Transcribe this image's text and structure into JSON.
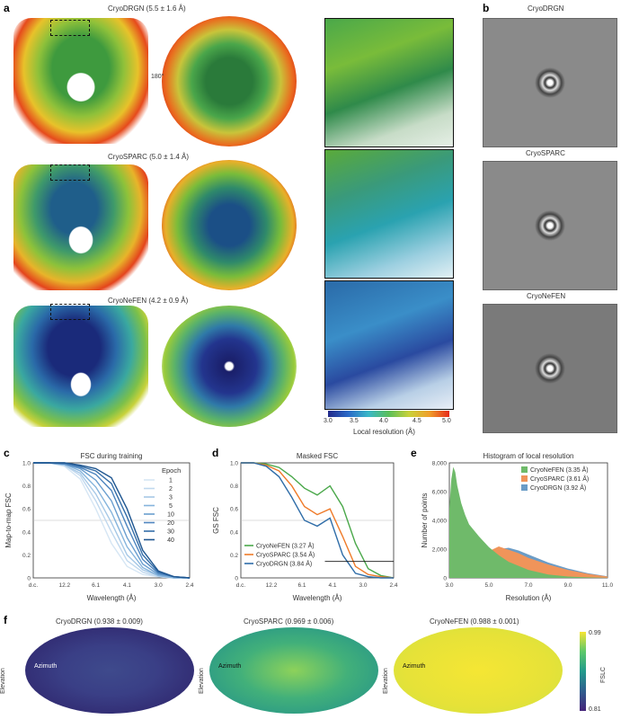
{
  "panel_labels": {
    "a": "a",
    "b": "b",
    "c": "c",
    "d": "d",
    "e": "e",
    "f": "f"
  },
  "panel_a": {
    "maps": [
      {
        "title": "CryoDRGN (5.5 ± 1.6 Å)"
      },
      {
        "title": "CryoSPARC (5.0 ± 1.4 Å)"
      },
      {
        "title": "CryoNeFEN (4.2 ± 0.9 Å)"
      }
    ],
    "rotation_label": "180°",
    "colorbar": {
      "ticks": [
        "3.0",
        "3.5",
        "4.0",
        "4.5",
        "5.0"
      ],
      "label": "Local resolution (Å)"
    }
  },
  "panel_b": {
    "titles": [
      "CryoDRGN",
      "CryoSPARC",
      "CryoNeFEN"
    ]
  },
  "colors": {
    "nefen": "#4aa84a",
    "sparc": "#ef7b2a",
    "drgn": "#2f6da8"
  },
  "chart_data": [
    {
      "id": "c",
      "type": "line",
      "title": "FSC during training",
      "xlabel": "Wavelength (Å)",
      "ylabel": "Map-to-map FSC",
      "xticks": [
        "d.c.",
        "12.2",
        "6.1",
        "4.1",
        "3.0",
        "2.4"
      ],
      "yticks": [
        "0",
        "0.2",
        "0.4",
        "0.6",
        "0.8",
        "1.0"
      ],
      "ylim": [
        0,
        1
      ],
      "legend_title": "Epoch",
      "series": [
        {
          "name": "1",
          "color": "#d6e6f4",
          "values": [
            1,
            1,
            0.97,
            0.86,
            0.6,
            0.3,
            0.1,
            0.03,
            0.01,
            0,
            0
          ]
        },
        {
          "name": "2",
          "color": "#c0d8ee",
          "values": [
            1,
            1,
            0.98,
            0.89,
            0.67,
            0.4,
            0.15,
            0.05,
            0.01,
            0,
            0
          ]
        },
        {
          "name": "3",
          "color": "#a6c8e6",
          "values": [
            1,
            1,
            0.98,
            0.91,
            0.73,
            0.48,
            0.2,
            0.07,
            0.02,
            0,
            0
          ]
        },
        {
          "name": "5",
          "color": "#86b4dc",
          "values": [
            1,
            1,
            0.99,
            0.93,
            0.79,
            0.57,
            0.27,
            0.09,
            0.02,
            0,
            0
          ]
        },
        {
          "name": "10",
          "color": "#6a9ecf",
          "values": [
            1,
            1,
            0.99,
            0.95,
            0.85,
            0.67,
            0.35,
            0.12,
            0.03,
            0.01,
            0
          ]
        },
        {
          "name": "20",
          "color": "#4f86bf",
          "values": [
            1,
            1,
            0.99,
            0.96,
            0.9,
            0.76,
            0.45,
            0.16,
            0.04,
            0.01,
            0
          ]
        },
        {
          "name": "30",
          "color": "#356ea8",
          "values": [
            1,
            1,
            1,
            0.97,
            0.93,
            0.82,
            0.53,
            0.2,
            0.05,
            0.01,
            0
          ]
        },
        {
          "name": "40",
          "color": "#1f5690",
          "values": [
            1,
            1,
            1,
            0.98,
            0.95,
            0.87,
            0.6,
            0.24,
            0.06,
            0.01,
            0
          ]
        }
      ]
    },
    {
      "id": "d",
      "type": "line",
      "title": "Masked FSC",
      "xlabel": "Wavelength (Å)",
      "ylabel": "GS FSC",
      "xticks": [
        "d.c.",
        "12.2",
        "6.1",
        "4.1",
        "3.0",
        "2.4"
      ],
      "yticks": [
        "0",
        "0.2",
        "0.4",
        "0.6",
        "0.8",
        "1.0"
      ],
      "ylim": [
        0,
        1
      ],
      "threshold": 0.143,
      "series": [
        {
          "name": "CryoNeFEN (3.27 Å)",
          "color": "#4aa84a",
          "values": [
            1,
            1,
            0.99,
            0.96,
            0.88,
            0.78,
            0.72,
            0.8,
            0.62,
            0.3,
            0.08,
            0.02,
            0
          ]
        },
        {
          "name": "CryoSPARC (3.54 Å)",
          "color": "#ef7b2a",
          "values": [
            1,
            1,
            0.98,
            0.93,
            0.8,
            0.62,
            0.55,
            0.6,
            0.36,
            0.1,
            0.03,
            0.01,
            0
          ]
        },
        {
          "name": "CryoDRGN (3.84 Å)",
          "color": "#2f6da8",
          "values": [
            1,
            1,
            0.97,
            0.88,
            0.7,
            0.5,
            0.45,
            0.52,
            0.2,
            0.04,
            0.01,
            0,
            0
          ]
        }
      ]
    },
    {
      "id": "e",
      "type": "area",
      "title": "Histogram of local resolution",
      "xlabel": "Resolution (Å)",
      "ylabel": "Number of points",
      "xticks": [
        "3.0",
        "5.0",
        "7.0",
        "9.0",
        "11.0"
      ],
      "yticks": [
        "0",
        "2,000",
        "4,000",
        "6,000",
        "8,000"
      ],
      "xlim": [
        3,
        11
      ],
      "ylim": [
        0,
        8600
      ],
      "series": [
        {
          "name": "CryoNeFEN (3.35 Å)",
          "color": "#6fba6a",
          "x": [
            3,
            3.1,
            3.2,
            3.3,
            3.4,
            3.6,
            3.8,
            4.0,
            4.5,
            5.0,
            5.5,
            6,
            7,
            8,
            9,
            10,
            11
          ],
          "values": [
            5200,
            7400,
            8300,
            7900,
            6900,
            5600,
            4700,
            4000,
            3100,
            2300,
            1700,
            1200,
            600,
            250,
            100,
            40,
            10
          ]
        },
        {
          "name": "CryoSPARC (3.61 Å)",
          "color": "#f0945a",
          "x": [
            3,
            3.5,
            4,
            4.5,
            5,
            5.5,
            6,
            6.5,
            7,
            8,
            9,
            10,
            11
          ],
          "values": [
            0,
            300,
            700,
            1300,
            2000,
            2350,
            2100,
            1850,
            1500,
            1000,
            600,
            300,
            100
          ]
        },
        {
          "name": "CryoDRGN (3.92 Å)",
          "color": "#6b9cc6",
          "x": [
            3,
            3.5,
            4,
            4.5,
            5,
            5.5,
            6,
            6.5,
            7,
            8,
            9,
            10,
            11
          ],
          "values": [
            0,
            150,
            400,
            800,
            1500,
            2150,
            2250,
            2050,
            1750,
            1150,
            700,
            350,
            120
          ]
        }
      ]
    }
  ],
  "panel_f": {
    "maps": [
      {
        "title": "CryoDRGN (0.938 ± 0.009)",
        "azimuth": "Azimuth",
        "elevation": "Elevation"
      },
      {
        "title": "CryoSPARC (0.969 ± 0.006)",
        "azimuth": "Azimuth",
        "elevation": "Elevation"
      },
      {
        "title": "CryoNeFEN (0.988 ± 0.001)",
        "azimuth": "Azimuth",
        "elevation": "Elevation"
      }
    ],
    "colorbar": {
      "max": "0.99",
      "min": "0.81",
      "label": "FSLC"
    }
  }
}
